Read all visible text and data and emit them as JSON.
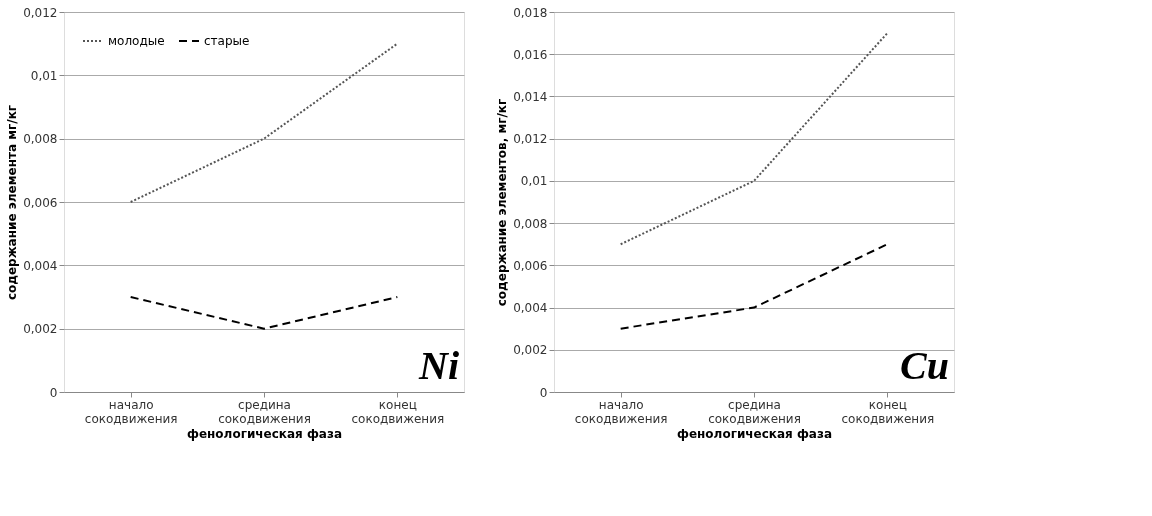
{
  "chart_data": [
    {
      "type": "line",
      "categories": [
        "начало сокодвижения",
        "средина сокодвижения",
        "конец сокодвижения"
      ],
      "xlabel": "фенологическая фаза",
      "ylabel": "содержание элемента мг/кг",
      "ylim": [
        0,
        0.012
      ],
      "yticks": [
        0,
        {
          "value": 0.002,
          "label": "0,002"
        },
        {
          "value": 0.004,
          "label": "0,004"
        },
        {
          "value": 0.006,
          "label": "0,006"
        },
        {
          "value": 0.008,
          "label": "0,008"
        },
        {
          "value": 0.01,
          "label": "0,01"
        },
        {
          "value": 0.012,
          "label": "0,012"
        }
      ],
      "grid": "y",
      "legend": "top left",
      "marker": "none",
      "annotations": [
        "Ni"
      ],
      "series": [
        {
          "name": "молодые",
          "color": "#555555",
          "line_style": "dotted",
          "values": [
            0.006,
            0.008,
            0.011
          ]
        },
        {
          "name": "старые",
          "color": "#000000",
          "line_style": "dashed",
          "values": [
            0.003,
            0.002,
            0.003
          ]
        }
      ]
    },
    {
      "type": "line",
      "categories": [
        "начало сокодвижения",
        "средина сокодвижения",
        "конец сокодвижения"
      ],
      "xlabel": "фенологическая фаза",
      "ylabel": "содержание элементов, мг/кг",
      "ylim": [
        0,
        0.018
      ],
      "yticks": [
        0,
        {
          "value": 0.002,
          "label": "0,002"
        },
        {
          "value": 0.004,
          "label": "0,004"
        },
        {
          "value": 0.006,
          "label": "0,006"
        },
        {
          "value": 0.008,
          "label": "0,008"
        },
        {
          "value": 0.01,
          "label": "0,01"
        },
        {
          "value": 0.012,
          "label": "0,012"
        },
        {
          "value": 0.014,
          "label": "0,014"
        },
        {
          "value": 0.016,
          "label": "0,016"
        },
        {
          "value": 0.018,
          "label": "0,018"
        }
      ],
      "grid": "y",
      "legend": "top left",
      "marker": "none",
      "annotations": [
        "Cu"
      ],
      "series": [
        {
          "name": "молодые",
          "color": "#555555",
          "line_style": "dotted",
          "values": [
            0.007,
            0.01,
            0.017
          ]
        },
        {
          "name": "старые",
          "color": "#000000",
          "line_style": "dashed",
          "values": [
            0.003,
            0.004,
            0.007
          ]
        }
      ]
    }
  ]
}
